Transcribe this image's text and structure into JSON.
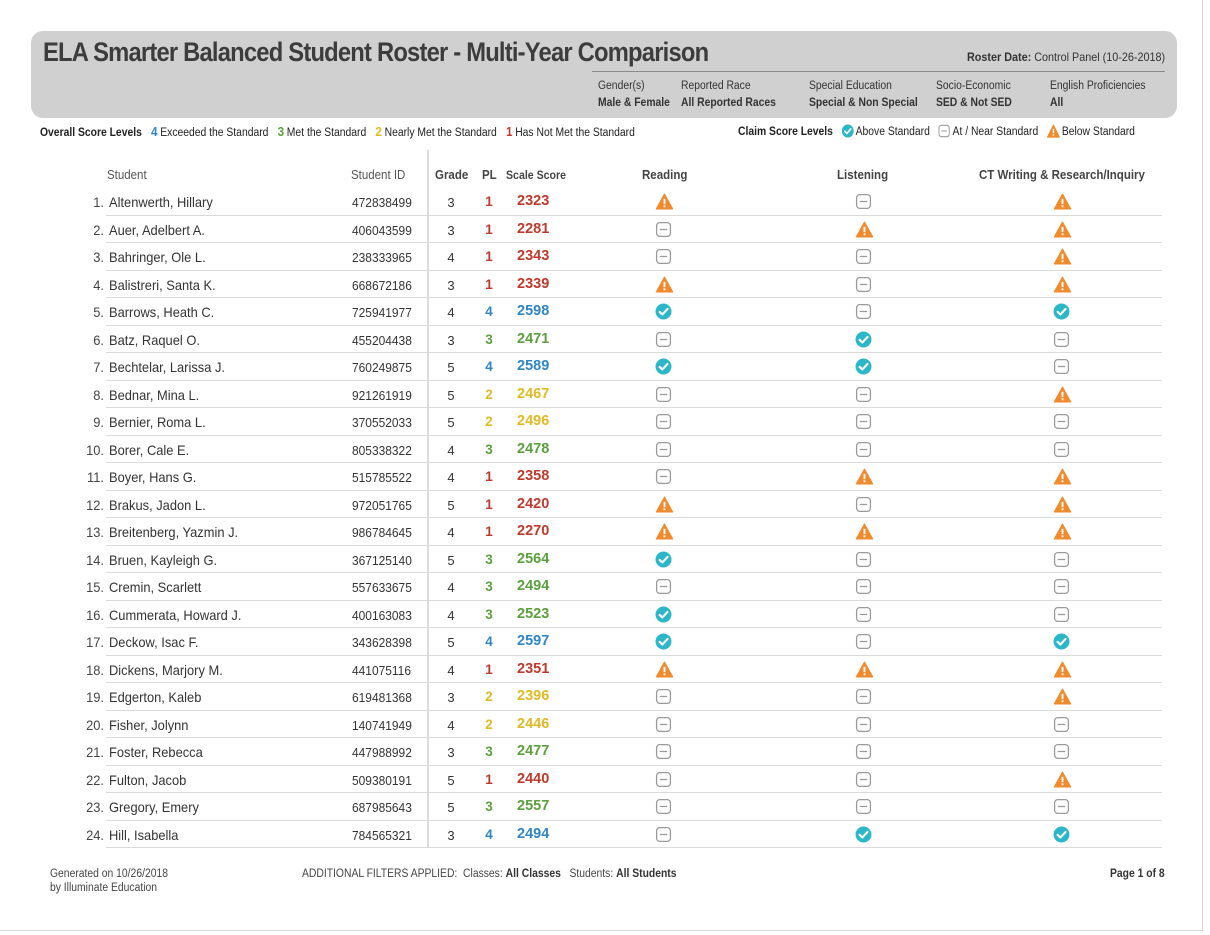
{
  "title": "ELA Smarter Balanced Student Roster - Multi-Year Comparison",
  "roster_date": {
    "label": "Roster Date:",
    "value": "Control Panel (10-26-2018)"
  },
  "filters": [
    {
      "label": "Gender(s)",
      "value": "Male & Female"
    },
    {
      "label": "Reported Race",
      "value": "All Reported Races"
    },
    {
      "label": "Special Education",
      "value": "Special & Non Special"
    },
    {
      "label": "Socio-Economic",
      "value": "SED & Not SED"
    },
    {
      "label": "English Proficiencies",
      "value": "All"
    }
  ],
  "legend": {
    "overall_label": "Overall Score Levels",
    "levels": [
      {
        "num": "4",
        "text": "Exceeded the Standard",
        "color": "#2f86c5"
      },
      {
        "num": "3",
        "text": "Met the Standard",
        "color": "#5aa03c"
      },
      {
        "num": "2",
        "text": "Nearly Met the Standard",
        "color": "#e1b922"
      },
      {
        "num": "1",
        "text": "Has Not Met the Standard",
        "color": "#c0392b"
      }
    ],
    "claim_label": "Claim Score Levels",
    "claims": [
      {
        "icon": "check-circle-icon",
        "text": "Above Standard"
      },
      {
        "icon": "minus-square-icon",
        "text": "At / Near Standard"
      },
      {
        "icon": "warning-triangle-icon",
        "text": "Below Standard"
      }
    ]
  },
  "columns": {
    "student": "Student",
    "student_id": "Student ID",
    "grade": "Grade",
    "pl": "PL",
    "scale_score": "Scale Score",
    "reading": "Reading",
    "listening": "Listening",
    "ct": "CT Writing & Research/Inquiry"
  },
  "level_colors": {
    "4": "#2f86c5",
    "3": "#5aa03c",
    "2": "#e1b922",
    "1": "#c0392b"
  },
  "claim_colors": {
    "above": "#2cb6c9",
    "near": "#9a9a9a",
    "below": "#f08a2c"
  },
  "students": [
    {
      "num": "1.",
      "name": "Altenwerth, Hillary",
      "id": "472838499",
      "grade": "3",
      "pl": "1",
      "score": "2323",
      "reading": "below",
      "listening": "near",
      "ct": "below"
    },
    {
      "num": "2.",
      "name": "Auer, Adelbert A.",
      "id": "406043599",
      "grade": "3",
      "pl": "1",
      "score": "2281",
      "reading": "near",
      "listening": "below",
      "ct": "below"
    },
    {
      "num": "3.",
      "name": "Bahringer, Ole L.",
      "id": "238333965",
      "grade": "4",
      "pl": "1",
      "score": "2343",
      "reading": "near",
      "listening": "near",
      "ct": "below"
    },
    {
      "num": "4.",
      "name": "Balistreri, Santa K.",
      "id": "668672186",
      "grade": "3",
      "pl": "1",
      "score": "2339",
      "reading": "below",
      "listening": "near",
      "ct": "below"
    },
    {
      "num": "5.",
      "name": "Barrows, Heath C.",
      "id": "725941977",
      "grade": "4",
      "pl": "4",
      "score": "2598",
      "reading": "above",
      "listening": "near",
      "ct": "above"
    },
    {
      "num": "6.",
      "name": "Batz, Raquel O.",
      "id": "455204438",
      "grade": "3",
      "pl": "3",
      "score": "2471",
      "reading": "near",
      "listening": "above",
      "ct": "near"
    },
    {
      "num": "7.",
      "name": "Bechtelar, Larissa J.",
      "id": "760249875",
      "grade": "5",
      "pl": "4",
      "score": "2589",
      "reading": "above",
      "listening": "above",
      "ct": "near"
    },
    {
      "num": "8.",
      "name": "Bednar, Mina L.",
      "id": "921261919",
      "grade": "5",
      "pl": "2",
      "score": "2467",
      "reading": "near",
      "listening": "near",
      "ct": "below"
    },
    {
      "num": "9.",
      "name": "Bernier, Roma L.",
      "id": "370552033",
      "grade": "5",
      "pl": "2",
      "score": "2496",
      "reading": "near",
      "listening": "near",
      "ct": "near"
    },
    {
      "num": "10.",
      "name": "Borer, Cale E.",
      "id": "805338322",
      "grade": "4",
      "pl": "3",
      "score": "2478",
      "reading": "near",
      "listening": "near",
      "ct": "near"
    },
    {
      "num": "11.",
      "name": "Boyer, Hans G.",
      "id": "515785522",
      "grade": "4",
      "pl": "1",
      "score": "2358",
      "reading": "near",
      "listening": "below",
      "ct": "below"
    },
    {
      "num": "12.",
      "name": "Brakus, Jadon L.",
      "id": "972051765",
      "grade": "5",
      "pl": "1",
      "score": "2420",
      "reading": "below",
      "listening": "near",
      "ct": "below"
    },
    {
      "num": "13.",
      "name": "Breitenberg, Yazmin J.",
      "id": "986784645",
      "grade": "4",
      "pl": "1",
      "score": "2270",
      "reading": "below",
      "listening": "below",
      "ct": "below"
    },
    {
      "num": "14.",
      "name": "Bruen, Kayleigh G.",
      "id": "367125140",
      "grade": "5",
      "pl": "3",
      "score": "2564",
      "reading": "above",
      "listening": "near",
      "ct": "near"
    },
    {
      "num": "15.",
      "name": "Cremin, Scarlett",
      "id": "557633675",
      "grade": "4",
      "pl": "3",
      "score": "2494",
      "reading": "near",
      "listening": "near",
      "ct": "near"
    },
    {
      "num": "16.",
      "name": "Cummerata, Howard J.",
      "id": "400163083",
      "grade": "4",
      "pl": "3",
      "score": "2523",
      "reading": "above",
      "listening": "near",
      "ct": "near"
    },
    {
      "num": "17.",
      "name": "Deckow, Isac F.",
      "id": "343628398",
      "grade": "5",
      "pl": "4",
      "score": "2597",
      "reading": "above",
      "listening": "near",
      "ct": "above"
    },
    {
      "num": "18.",
      "name": "Dickens, Marjory M.",
      "id": "441075116",
      "grade": "4",
      "pl": "1",
      "score": "2351",
      "reading": "below",
      "listening": "below",
      "ct": "below"
    },
    {
      "num": "19.",
      "name": "Edgerton, Kaleb",
      "id": "619481368",
      "grade": "3",
      "pl": "2",
      "score": "2396",
      "reading": "near",
      "listening": "near",
      "ct": "below"
    },
    {
      "num": "20.",
      "name": "Fisher, Jolynn",
      "id": "140741949",
      "grade": "4",
      "pl": "2",
      "score": "2446",
      "reading": "near",
      "listening": "near",
      "ct": "near"
    },
    {
      "num": "21.",
      "name": "Foster, Rebecca",
      "id": "447988992",
      "grade": "3",
      "pl": "3",
      "score": "2477",
      "reading": "near",
      "listening": "near",
      "ct": "near"
    },
    {
      "num": "22.",
      "name": "Fulton, Jacob",
      "id": "509380191",
      "grade": "5",
      "pl": "1",
      "score": "2440",
      "reading": "near",
      "listening": "near",
      "ct": "below"
    },
    {
      "num": "23.",
      "name": "Gregory, Emery",
      "id": "687985643",
      "grade": "5",
      "pl": "3",
      "score": "2557",
      "reading": "near",
      "listening": "near",
      "ct": "near"
    },
    {
      "num": "24.",
      "name": "Hill, Isabella",
      "id": "784565321",
      "grade": "3",
      "pl": "4",
      "score": "2494",
      "reading": "near",
      "listening": "above",
      "ct": "above"
    }
  ],
  "footer": {
    "generated_line1": "Generated on 10/26/2018",
    "generated_line2": "by Illuminate Education",
    "filters_label": "ADDITIONAL FILTERS APPLIED:",
    "classes_label": "Classes:",
    "classes_value": "All Classes",
    "students_label": "Students:",
    "students_value": "All Students",
    "page": "Page 1 of 8"
  }
}
